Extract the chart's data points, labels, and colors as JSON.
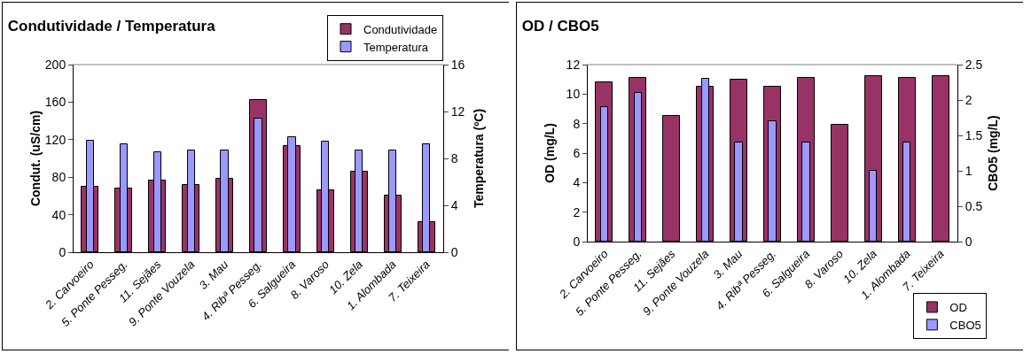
{
  "chart_data": [
    {
      "type": "bar",
      "title": "Condutividade / Temperatura",
      "ylabel": "Condut. (uS/cm)",
      "y2label": "Temperatura (ºC)",
      "categories": [
        "2. Carvoeiro",
        "5. Ponte Pesseg.",
        "11. Sejães",
        "9. Ponte Vouzela",
        "3. Mau",
        "4. Ribª Pesseg.",
        "6. Salgueira",
        "8. Varoso",
        "10. Zela",
        "1. Alombada",
        "7. Teixeira"
      ],
      "series": [
        {
          "name": "Condutividade",
          "color": "#993366",
          "values": [
            70,
            68,
            76,
            72,
            78,
            162,
            113,
            66,
            86,
            60,
            32
          ]
        },
        {
          "name": "Temperatura",
          "color": "#9999ff",
          "axis": "y2",
          "values": [
            9.5,
            9.2,
            8.5,
            8.7,
            8.7,
            11.4,
            9.8,
            9.4,
            8.7,
            8.7,
            9.2
          ]
        }
      ],
      "ylim": [
        0,
        200
      ],
      "yticks": [
        0,
        40,
        80,
        120,
        160,
        200
      ],
      "y2lim": [
        0,
        16
      ],
      "y2ticks": [
        0,
        4,
        8,
        12,
        16
      ],
      "grid": false,
      "legend": "top right"
    },
    {
      "type": "bar",
      "title": "OD / CBO5",
      "ylabel": "OD (mg/L)",
      "y2label": "CBO5 (mg/L)",
      "categories": [
        "2. Carvoeiro",
        "5. Ponte Pesseg.",
        "11. Sejães",
        "9. Ponte Vouzela",
        "3. Mau",
        "4. Ribª Pesseg.",
        "6. Salgueira",
        "8. Varoso",
        "10. Zela",
        "1. Alombada",
        "7. Teixeira"
      ],
      "series": [
        {
          "name": "OD",
          "color": "#993366",
          "values": [
            10.8,
            11.1,
            8.5,
            10.5,
            11.0,
            10.5,
            11.1,
            7.9,
            11.2,
            11.1,
            11.2
          ]
        },
        {
          "name": "CBO5",
          "color": "#9999ff",
          "axis": "y2",
          "values": [
            1.9,
            2.1,
            null,
            2.3,
            1.4,
            1.7,
            1.4,
            null,
            1.0,
            1.4,
            null
          ]
        }
      ],
      "ylim": [
        0,
        12
      ],
      "yticks": [
        0,
        2,
        4,
        6,
        8,
        10,
        12
      ],
      "y2lim": [
        0,
        2.5
      ],
      "y2ticks": [
        0,
        {
          "value": 0.5,
          "label": "0.5"
        },
        1,
        {
          "value": 1.5,
          "label": "1.5"
        },
        2,
        {
          "value": 2.5,
          "label": "2.5"
        }
      ],
      "grid": false,
      "legend": "bottom right"
    }
  ]
}
